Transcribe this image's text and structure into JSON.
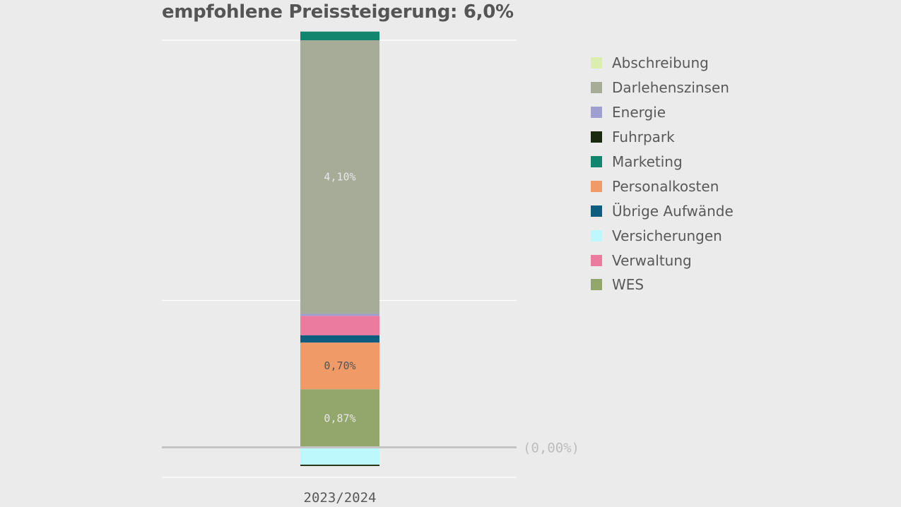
{
  "title": "empfohlene Preissteigerung: 6,0%",
  "colors": {
    "background": "#ebebeb",
    "gridline": "#ffffff",
    "zero_line": "#c4c4c4",
    "text": "#595959",
    "label_light": "#e6e6e6",
    "label_dark": "#555555"
  },
  "chart_data": {
    "type": "bar",
    "stacked": true,
    "categories": [
      "2023/2024"
    ],
    "ylim": [
      -0.45,
      6.1
    ],
    "zero_label": "(0,00%)",
    "legend_position": "right",
    "series": [
      {
        "name": "Abschreibung",
        "color": "#dcedb0",
        "values": [
          0.0
        ]
      },
      {
        "name": "Darlehenszinsen",
        "color": "#a6ac98",
        "values": [
          4.1
        ],
        "label": "4,10%"
      },
      {
        "name": "Energie",
        "color": "#9e9ed0",
        "values": [
          0.03
        ]
      },
      {
        "name": "Fuhrpark",
        "color": "#1b2a0e",
        "values": [
          -0.02
        ]
      },
      {
        "name": "Marketing",
        "color": "#12856f",
        "values": [
          0.13
        ]
      },
      {
        "name": "Personalkosten",
        "color": "#ef9a67",
        "values": [
          0.7
        ],
        "label": "0,70%"
      },
      {
        "name": "Übrige Aufwände",
        "color": "#0e5c7e",
        "values": [
          0.11
        ]
      },
      {
        "name": "Versicherungen",
        "color": "#bdf9fc",
        "values": [
          -0.26
        ]
      },
      {
        "name": "Verwaltung",
        "color": "#ec7ba0",
        "values": [
          0.29
        ]
      },
      {
        "name": "WES",
        "color": "#93a66c",
        "values": [
          0.87
        ],
        "label": "0,87%"
      }
    ],
    "stack_order_positive": [
      "WES",
      "Personalkosten",
      "Übrige Aufwände",
      "Verwaltung",
      "Energie",
      "Darlehenszinsen",
      "Marketing",
      "Abschreibung"
    ],
    "stack_order_negative": [
      "Versicherungen",
      "Fuhrpark"
    ]
  }
}
